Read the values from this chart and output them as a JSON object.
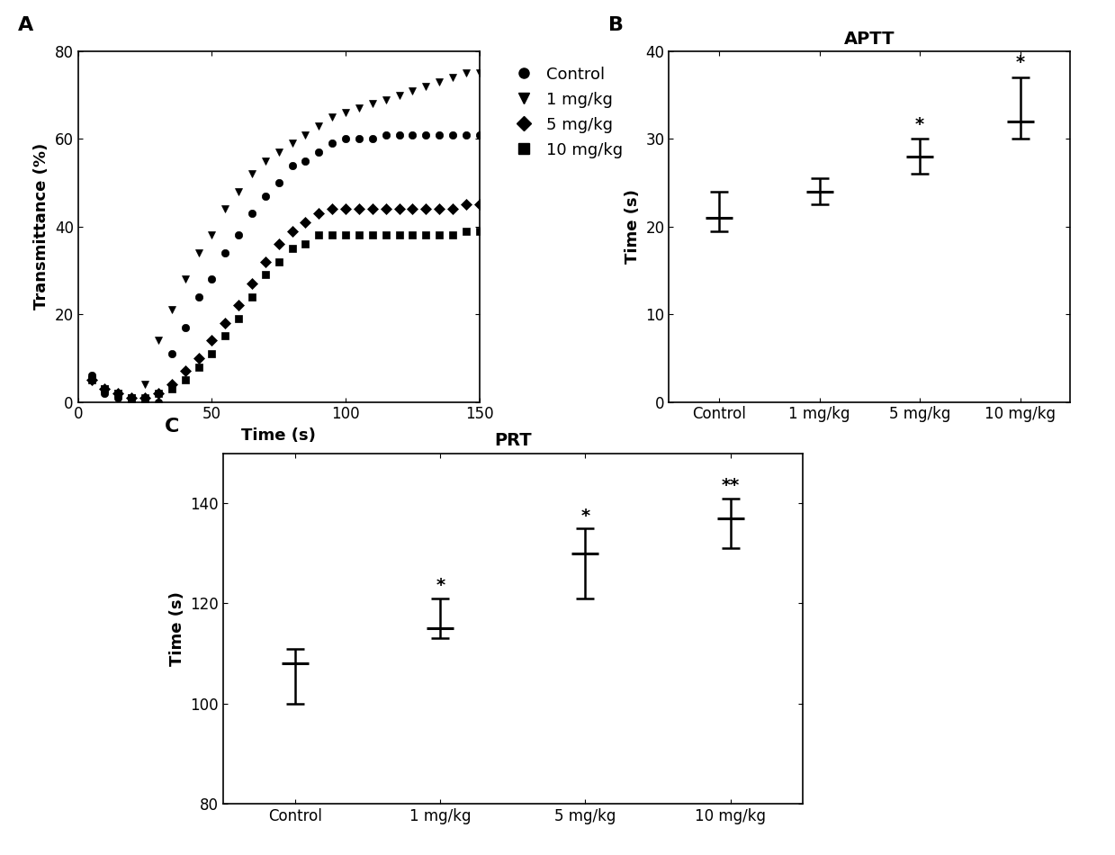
{
  "panel_A": {
    "xlabel": "Time (s)",
    "ylabel": "Transmittance (%)",
    "xlim": [
      0,
      150
    ],
    "ylim": [
      0,
      80
    ],
    "xticks": [
      0,
      50,
      100,
      150
    ],
    "yticks": [
      0,
      20,
      40,
      60,
      80
    ],
    "series": {
      "Control": {
        "marker": "o",
        "x": [
          5,
          10,
          15,
          20,
          25,
          30,
          35,
          40,
          45,
          50,
          55,
          60,
          65,
          70,
          75,
          80,
          85,
          90,
          95,
          100,
          105,
          110,
          115,
          120,
          125,
          130,
          135,
          140,
          145,
          150
        ],
        "y": [
          6,
          2,
          1,
          0,
          0,
          0,
          11,
          17,
          24,
          28,
          34,
          38,
          43,
          47,
          50,
          54,
          55,
          57,
          59,
          60,
          60,
          60,
          61,
          61,
          61,
          61,
          61,
          61,
          61,
          61
        ]
      },
      "1 mg/kg": {
        "marker": "v",
        "x": [
          5,
          10,
          15,
          20,
          25,
          30,
          35,
          40,
          45,
          50,
          55,
          60,
          65,
          70,
          75,
          80,
          85,
          90,
          95,
          100,
          105,
          110,
          115,
          120,
          125,
          130,
          135,
          140,
          145,
          150
        ],
        "y": [
          5,
          3,
          2,
          1,
          4,
          14,
          21,
          28,
          34,
          38,
          44,
          48,
          52,
          55,
          57,
          59,
          61,
          63,
          65,
          66,
          67,
          68,
          69,
          70,
          71,
          72,
          73,
          74,
          75,
          75
        ]
      },
      "5 mg/kg": {
        "marker": "D",
        "x": [
          5,
          10,
          15,
          20,
          25,
          30,
          35,
          40,
          45,
          50,
          55,
          60,
          65,
          70,
          75,
          80,
          85,
          90,
          95,
          100,
          105,
          110,
          115,
          120,
          125,
          130,
          135,
          140,
          145,
          150
        ],
        "y": [
          5,
          3,
          2,
          1,
          1,
          2,
          4,
          7,
          10,
          14,
          18,
          22,
          27,
          32,
          36,
          39,
          41,
          43,
          44,
          44,
          44,
          44,
          44,
          44,
          44,
          44,
          44,
          44,
          45,
          45
        ]
      },
      "10 mg/kg": {
        "marker": "s",
        "x": [
          5,
          10,
          15,
          20,
          25,
          30,
          35,
          40,
          45,
          50,
          55,
          60,
          65,
          70,
          75,
          80,
          85,
          90,
          95,
          100,
          105,
          110,
          115,
          120,
          125,
          130,
          135,
          140,
          145,
          150
        ],
        "y": [
          5,
          3,
          2,
          1,
          1,
          2,
          3,
          5,
          8,
          11,
          15,
          19,
          24,
          29,
          32,
          35,
          36,
          38,
          38,
          38,
          38,
          38,
          38,
          38,
          38,
          38,
          38,
          38,
          39,
          39
        ]
      }
    },
    "legend_order": [
      "Control",
      "1 mg/kg",
      "5 mg/kg",
      "10 mg/kg"
    ],
    "legend_markers": [
      "o",
      "v",
      "D",
      "s"
    ]
  },
  "panel_B": {
    "title": "APTT",
    "ylabel": "Time (s)",
    "ylim": [
      0,
      40
    ],
    "yticks": [
      0,
      10,
      20,
      30,
      40
    ],
    "categories": [
      "Control",
      "1 mg/kg",
      "5 mg/kg",
      "10 mg/kg"
    ],
    "means": [
      21.0,
      24.0,
      28.0,
      32.0
    ],
    "errors_upper": [
      3.0,
      1.5,
      2.0,
      5.0
    ],
    "errors_lower": [
      1.5,
      1.5,
      2.0,
      2.0
    ],
    "sig_labels": [
      "",
      "",
      "*",
      "*"
    ]
  },
  "panel_C": {
    "title": "PRT",
    "ylabel": "Time (s)",
    "ylim": [
      80,
      150
    ],
    "yticks": [
      80,
      100,
      120,
      140
    ],
    "categories": [
      "Control",
      "1 mg/kg",
      "5 mg/kg",
      "10 mg/kg"
    ],
    "means": [
      108.0,
      115.0,
      130.0,
      137.0
    ],
    "errors_upper": [
      3.0,
      6.0,
      5.0,
      4.0
    ],
    "errors_lower": [
      8.0,
      2.0,
      9.0,
      6.0
    ],
    "sig_labels": [
      "",
      "*",
      "*",
      "**"
    ]
  },
  "font_size": 13,
  "label_font_size": 13,
  "tick_font_size": 12,
  "marker_size": 6
}
